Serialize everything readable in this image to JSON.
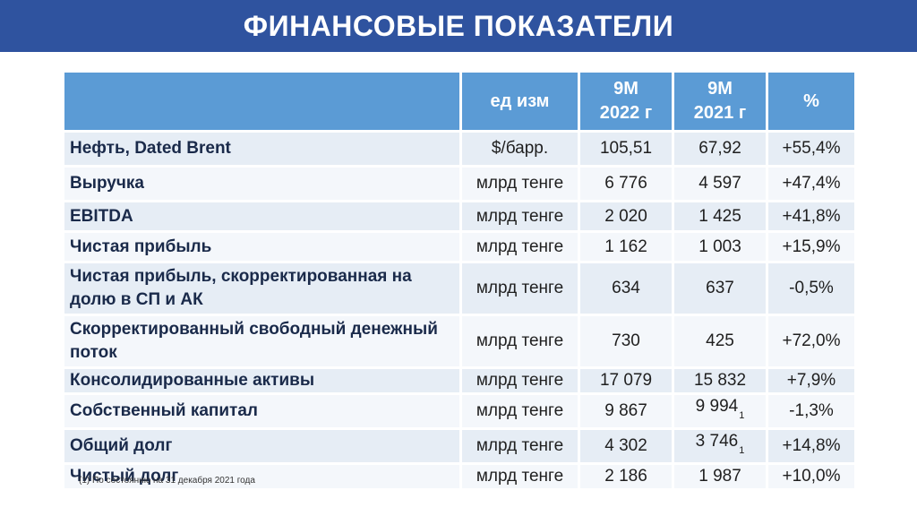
{
  "title": "ФИНАНСОВЫЕ ПОКАЗАТЕЛИ",
  "header": {
    "unit": "ед изм",
    "col1": "9М\n2022 г",
    "col2": "9М\n2021 г",
    "pct": "%"
  },
  "rows": [
    {
      "name": "Нефть, Dated Brent",
      "unit": "$/барр.",
      "v2022": "105,51",
      "v2021": "67,92",
      "note": "",
      "pct": "+55,4%"
    },
    {
      "name": "Выручка",
      "unit": "млрд тенге",
      "v2022": "6 776",
      "v2021": "4 597",
      "note": "",
      "pct": "+47,4%"
    },
    {
      "name": "EBITDA",
      "unit": "млрд тенге",
      "v2022": "2 020",
      "v2021": "1 425",
      "note": "",
      "pct": "+41,8%"
    },
    {
      "name": "Чистая прибыль",
      "unit": "млрд тенге",
      "v2022": "1 162",
      "v2021": "1 003",
      "note": "",
      "pct": "+15,9%"
    },
    {
      "name": "Чистая прибыль, скорректированная на долю в СП и АК",
      "unit": "млрд тенге",
      "v2022": "634",
      "v2021": "637",
      "note": "",
      "pct": "-0,5%"
    },
    {
      "name": "Скорректированный свободный денежный поток",
      "unit": "млрд тенге",
      "v2022": "730",
      "v2021": "425",
      "note": "",
      "pct": "+72,0%"
    },
    {
      "name": "Консолидированные активы",
      "unit": "млрд тенге",
      "v2022": "17 079",
      "v2021": "15 832",
      "note": "",
      "pct": "+7,9%"
    },
    {
      "name": "Собственный капитал",
      "unit": "млрд тенге",
      "v2022": "9 867",
      "v2021": "9 994",
      "note": "1",
      "pct": "-1,3%"
    },
    {
      "name": "Общий долг",
      "unit": "млрд тенге",
      "v2022": "4 302",
      "v2021": "3 746",
      "note": "1",
      "pct": "+14,8%"
    },
    {
      "name": "Чистый долг",
      "unit": "млрд тенге",
      "v2022": "2 186",
      "v2021": "1 987",
      "note": "",
      "pct": "+10,0%"
    }
  ],
  "footnote": "(1) По состоянию на 31 декабря 2021 года"
}
